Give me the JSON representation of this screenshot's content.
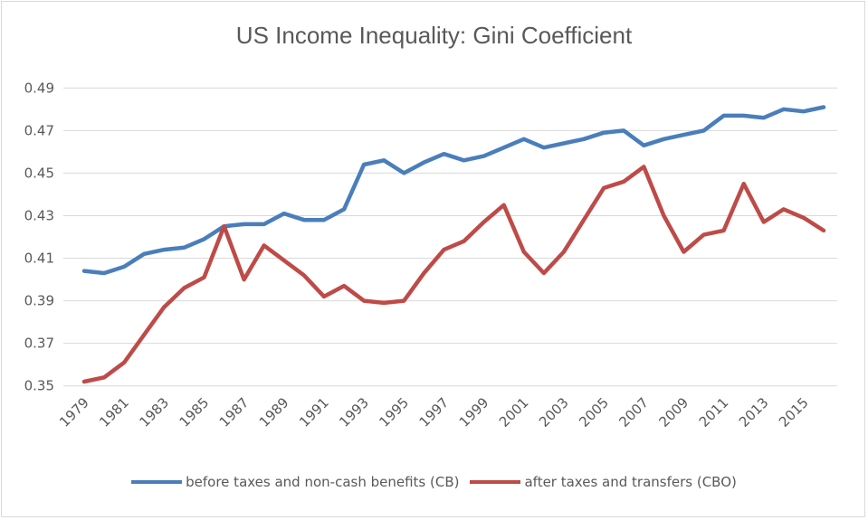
{
  "chart_data": {
    "type": "line",
    "title": "US Income Inequality: Gini Coefficient",
    "xlabel": "",
    "ylabel": "",
    "x": [
      1979,
      1980,
      1981,
      1982,
      1983,
      1984,
      1985,
      1986,
      1987,
      1988,
      1989,
      1990,
      1991,
      1992,
      1993,
      1994,
      1995,
      1996,
      1997,
      1998,
      1999,
      2000,
      2001,
      2002,
      2003,
      2004,
      2005,
      2006,
      2007,
      2008,
      2009,
      2010,
      2011,
      2012,
      2013,
      2014,
      2015,
      2016
    ],
    "x_tick_labels": [
      "1979",
      "1981",
      "1983",
      "1985",
      "1987",
      "1989",
      "1991",
      "1993",
      "1995",
      "1997",
      "1999",
      "2001",
      "2003",
      "2005",
      "2007",
      "2009",
      "2011",
      "2013",
      "2015"
    ],
    "ylim": [
      0.35,
      0.49
    ],
    "y_tick_labels": [
      "0.35",
      "0.37",
      "0.39",
      "0.41",
      "0.43",
      "0.45",
      "0.47",
      "0.49"
    ],
    "grid": true,
    "legend_position": "bottom",
    "series": [
      {
        "name": "before taxes and non-cash benefits (CB)",
        "color": "#4a7ebb",
        "values": [
          0.404,
          0.403,
          0.406,
          0.412,
          0.414,
          0.415,
          0.419,
          0.425,
          0.426,
          0.426,
          0.431,
          0.428,
          0.428,
          0.433,
          0.454,
          0.456,
          0.45,
          0.455,
          0.459,
          0.456,
          0.458,
          0.462,
          0.466,
          0.462,
          0.464,
          0.466,
          0.469,
          0.47,
          0.463,
          0.466,
          0.468,
          0.47,
          0.477,
          0.477,
          0.476,
          0.48,
          0.479,
          0.481
        ]
      },
      {
        "name": "after taxes and transfers (CBO)",
        "color": "#be4b48",
        "values": [
          0.352,
          0.354,
          0.361,
          0.374,
          0.387,
          0.396,
          0.401,
          0.425,
          0.4,
          0.416,
          0.409,
          0.402,
          0.392,
          0.397,
          0.39,
          0.389,
          0.39,
          0.403,
          0.414,
          0.418,
          0.427,
          0.435,
          0.413,
          0.403,
          0.413,
          0.428,
          0.443,
          0.446,
          0.453,
          0.43,
          0.413,
          0.421,
          0.423,
          0.445,
          0.427,
          0.433,
          0.429,
          0.423
        ]
      }
    ]
  }
}
